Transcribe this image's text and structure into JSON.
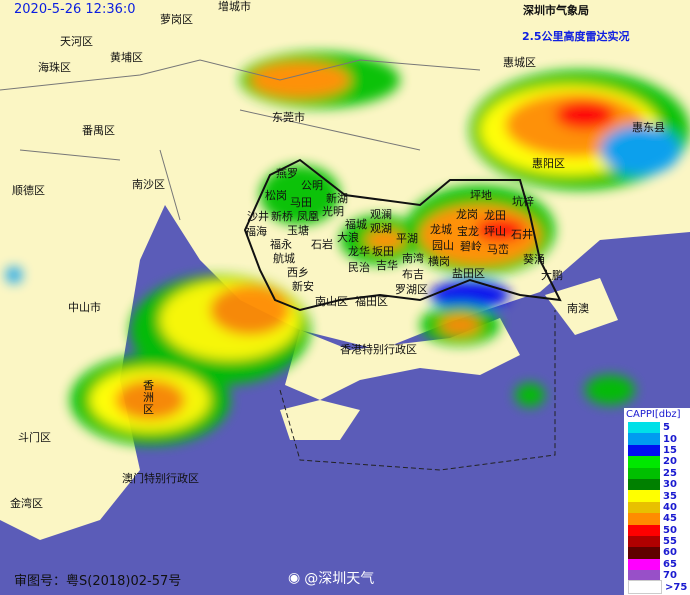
{
  "header": {
    "timestamp": "2020-5-26 12:36:0",
    "organization": "深圳市气象局",
    "product": "2.5公里高度雷达实况"
  },
  "labels": {
    "zengcheng": "增城市",
    "luogang": "萝岗区",
    "tianhe": "天河区",
    "huangpu": "黄埔区",
    "haizhu": "海珠区",
    "huicheng": "惠城区",
    "dongguan": "东莞市",
    "panyu": "番禺区",
    "huidong": "惠东县",
    "huiyang": "惠阳区",
    "shunde": "顺德区",
    "nansha": "南沙区",
    "zhongshan": "中山市",
    "hongkong": "香港特别行政区",
    "xiangzhou": "香洲区",
    "doumen": "斗门区",
    "macau": "澳门特别行政区",
    "jinwan": "金湾区",
    "nanao": "南澳"
  },
  "shenzhen_labels": [
    "燕罗",
    "公明",
    "新湖",
    "松岗",
    "马田",
    "光明",
    "沙井",
    "新桥",
    "凤凰",
    "福城",
    "观澜",
    "玉塘",
    "福海",
    "观湖",
    "平湖",
    "石岩",
    "大浪",
    "福永",
    "龙华",
    "坂田",
    "航城",
    "民治",
    "吉华",
    "南湾",
    "横岗",
    "西乡",
    "布吉",
    "新安",
    "罗湖区",
    "南山区",
    "福田区",
    "坪地",
    "龙岗",
    "龙田",
    "坑梓",
    "龙城",
    "宝龙",
    "坪山",
    "石井",
    "园山",
    "碧岭",
    "马峦",
    "葵涌",
    "盐田区",
    "大鹏"
  ],
  "legend": {
    "title": "CAPPI[dbz]",
    "items": [
      {
        "value": "5",
        "color": "#00e0e8"
      },
      {
        "value": "10",
        "color": "#009cf0"
      },
      {
        "value": "15",
        "color": "#0010f0"
      },
      {
        "value": "20",
        "color": "#00e800"
      },
      {
        "value": "25",
        "color": "#00c000"
      },
      {
        "value": "30",
        "color": "#008000"
      },
      {
        "value": "35",
        "color": "#ffff00"
      },
      {
        "value": "40",
        "color": "#e8c000"
      },
      {
        "value": "45",
        "color": "#ff8c00"
      },
      {
        "value": "50",
        "color": "#ff0000"
      },
      {
        "value": "55",
        "color": "#b00000"
      },
      {
        "value": "60",
        "color": "#600000"
      },
      {
        "value": "65",
        "color": "#ff00ff"
      },
      {
        "value": "70",
        "color": "#9850c8"
      },
      {
        "value": ">75",
        "color": "#ffffff"
      }
    ]
  },
  "footer": {
    "map_number": "审图号：粤S(2018)02-57号",
    "weibo": "@深圳天气"
  },
  "colors": {
    "land": "#fbf6c4",
    "sea": "#5b5cb8"
  }
}
